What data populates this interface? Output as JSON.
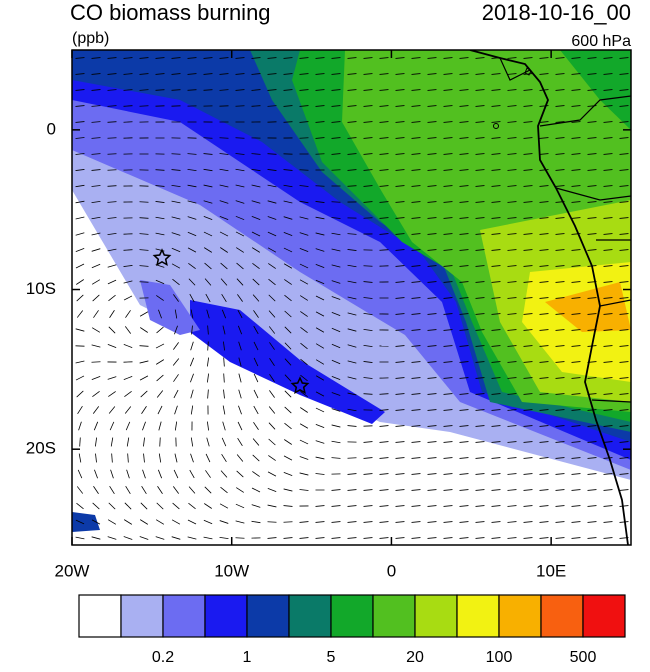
{
  "chart_data": {
    "type": "map",
    "title": "CO biomass burning",
    "subtitle": "(ppb)",
    "date": "2018-10-16_00",
    "level": "600 hPa",
    "xlim": [
      -20,
      15
    ],
    "ylim": [
      -26,
      5
    ],
    "xticks": [
      {
        "value": -20,
        "label": "20W"
      },
      {
        "value": -10,
        "label": "10W"
      },
      0,
      {
        "value": 10,
        "label": "10E"
      }
    ],
    "yticks": [
      0,
      {
        "value": -10,
        "label": "10S"
      },
      {
        "value": -20,
        "label": "20S"
      }
    ],
    "colorbar": {
      "colors": [
        "#ffffff",
        "#a9b0f2",
        "#6c6cf2",
        "#1a1af0",
        "#0c3aa8",
        "#0a7a68",
        "#12a82a",
        "#52c020",
        "#a8dc12",
        "#f2f212",
        "#f8b000",
        "#f86010",
        "#f01010"
      ],
      "levels": [
        0.1,
        0.2,
        0.5,
        1,
        2,
        5,
        10,
        20,
        50,
        100,
        200,
        500
      ],
      "ticks": [
        0.2,
        1,
        5,
        20,
        100,
        500
      ]
    }
  }
}
